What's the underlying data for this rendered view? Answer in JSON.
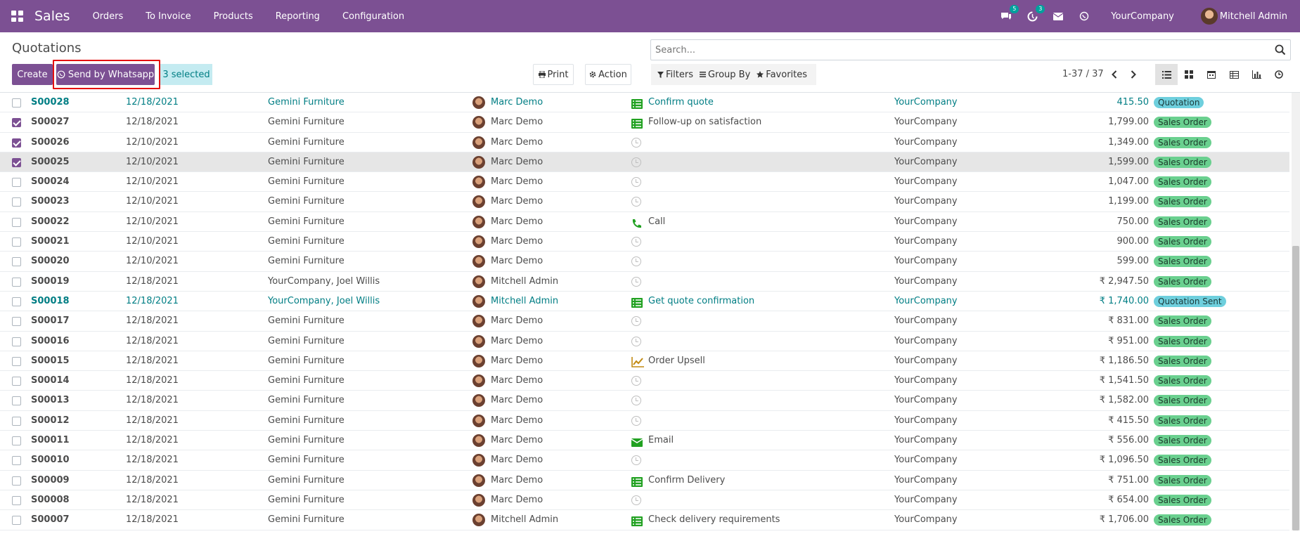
{
  "navbar": {
    "brand": "Sales",
    "menus": [
      "Orders",
      "To Invoice",
      "Products",
      "Reporting",
      "Configuration"
    ],
    "messages_badge": "5",
    "activities_badge": "3",
    "company": "YourCompany",
    "user": "Mitchell Admin",
    "color": "#7c5093"
  },
  "control": {
    "title": "Quotations",
    "search_placeholder": "Search...",
    "create_label": "Create",
    "whatsapp_label": "Send by Whatsapp",
    "selected_label": "3 selected",
    "print_label": "Print",
    "action_label": "Action",
    "filters_label": "Filters",
    "groupby_label": "Group By",
    "favorites_label": "Favorites",
    "pager": "1-37 / 37"
  },
  "rows": [
    {
      "num": "S00028",
      "date": "12/18/2021",
      "customer": "Gemini Furniture",
      "salesperson": "Marc Demo",
      "activity_icon": "todo-icon",
      "activity": "Confirm quote",
      "company": "YourCompany",
      "total": "415.50",
      "status": "Quotation",
      "status_color": "blue",
      "checked": false,
      "blue": true
    },
    {
      "num": "S00027",
      "date": "12/18/2021",
      "customer": "Gemini Furniture",
      "salesperson": "Marc Demo",
      "activity_icon": "todo-icon",
      "activity": "Follow-up on satisfaction",
      "company": "YourCompany",
      "total": "1,799.00",
      "status": "Sales Order",
      "status_color": "green",
      "checked": true
    },
    {
      "num": "S00026",
      "date": "12/10/2021",
      "customer": "Gemini Furniture",
      "salesperson": "Marc Demo",
      "activity_icon": "clock-icon",
      "activity": "",
      "company": "YourCompany",
      "total": "1,349.00",
      "status": "Sales Order",
      "status_color": "green",
      "checked": true
    },
    {
      "num": "S00025",
      "date": "12/10/2021",
      "customer": "Gemini Furniture",
      "salesperson": "Marc Demo",
      "activity_icon": "clock-icon",
      "activity": "",
      "company": "YourCompany",
      "total": "1,599.00",
      "status": "Sales Order",
      "status_color": "green",
      "checked": true,
      "highlight": true
    },
    {
      "num": "S00024",
      "date": "12/10/2021",
      "customer": "Gemini Furniture",
      "salesperson": "Marc Demo",
      "activity_icon": "clock-icon",
      "activity": "",
      "company": "YourCompany",
      "total": "1,047.00",
      "status": "Sales Order",
      "status_color": "green",
      "checked": false
    },
    {
      "num": "S00023",
      "date": "12/10/2021",
      "customer": "Gemini Furniture",
      "salesperson": "Marc Demo",
      "activity_icon": "clock-icon",
      "activity": "",
      "company": "YourCompany",
      "total": "1,199.00",
      "status": "Sales Order",
      "status_color": "green",
      "checked": false
    },
    {
      "num": "S00022",
      "date": "12/10/2021",
      "customer": "Gemini Furniture",
      "salesperson": "Marc Demo",
      "activity_icon": "phone-icon",
      "activity": "Call",
      "company": "YourCompany",
      "total": "750.00",
      "status": "Sales Order",
      "status_color": "green",
      "checked": false
    },
    {
      "num": "S00021",
      "date": "12/10/2021",
      "customer": "Gemini Furniture",
      "salesperson": "Marc Demo",
      "activity_icon": "clock-icon",
      "activity": "",
      "company": "YourCompany",
      "total": "900.00",
      "status": "Sales Order",
      "status_color": "green",
      "checked": false
    },
    {
      "num": "S00020",
      "date": "12/10/2021",
      "customer": "Gemini Furniture",
      "salesperson": "Marc Demo",
      "activity_icon": "clock-icon",
      "activity": "",
      "company": "YourCompany",
      "total": "599.00",
      "status": "Sales Order",
      "status_color": "green",
      "checked": false
    },
    {
      "num": "S00019",
      "date": "12/18/2021",
      "customer": "YourCompany, Joel Willis",
      "salesperson": "Mitchell Admin",
      "activity_icon": "clock-icon",
      "activity": "",
      "company": "YourCompany",
      "total": "₹ 2,947.50",
      "status": "Sales Order",
      "status_color": "green",
      "checked": false
    },
    {
      "num": "S00018",
      "date": "12/18/2021",
      "customer": "YourCompany, Joel Willis",
      "salesperson": "Mitchell Admin",
      "activity_icon": "todo-icon",
      "activity": "Get quote confirmation",
      "company": "YourCompany",
      "total": "₹ 1,740.00",
      "status": "Quotation Sent",
      "status_color": "blue",
      "checked": false,
      "blue": true
    },
    {
      "num": "S00017",
      "date": "12/18/2021",
      "customer": "Gemini Furniture",
      "salesperson": "Marc Demo",
      "activity_icon": "clock-icon",
      "activity": "",
      "company": "YourCompany",
      "total": "₹ 831.00",
      "status": "Sales Order",
      "status_color": "green",
      "checked": false
    },
    {
      "num": "S00016",
      "date": "12/18/2021",
      "customer": "Gemini Furniture",
      "salesperson": "Marc Demo",
      "activity_icon": "clock-icon",
      "activity": "",
      "company": "YourCompany",
      "total": "₹ 951.00",
      "status": "Sales Order",
      "status_color": "green",
      "checked": false
    },
    {
      "num": "S00015",
      "date": "12/18/2021",
      "customer": "Gemini Furniture",
      "salesperson": "Marc Demo",
      "activity_icon": "upsell-icon",
      "activity": "Order Upsell",
      "company": "YourCompany",
      "total": "₹ 1,186.50",
      "status": "Sales Order",
      "status_color": "green",
      "checked": false
    },
    {
      "num": "S00014",
      "date": "12/18/2021",
      "customer": "Gemini Furniture",
      "salesperson": "Marc Demo",
      "activity_icon": "clock-icon",
      "activity": "",
      "company": "YourCompany",
      "total": "₹ 1,541.50",
      "status": "Sales Order",
      "status_color": "green",
      "checked": false
    },
    {
      "num": "S00013",
      "date": "12/18/2021",
      "customer": "Gemini Furniture",
      "salesperson": "Marc Demo",
      "activity_icon": "clock-icon",
      "activity": "",
      "company": "YourCompany",
      "total": "₹ 1,582.00",
      "status": "Sales Order",
      "status_color": "green",
      "checked": false
    },
    {
      "num": "S00012",
      "date": "12/18/2021",
      "customer": "Gemini Furniture",
      "salesperson": "Marc Demo",
      "activity_icon": "clock-icon",
      "activity": "",
      "company": "YourCompany",
      "total": "₹ 415.50",
      "status": "Sales Order",
      "status_color": "green",
      "checked": false
    },
    {
      "num": "S00011",
      "date": "12/18/2021",
      "customer": "Gemini Furniture",
      "salesperson": "Marc Demo",
      "activity_icon": "email-icon",
      "activity": "Email",
      "company": "YourCompany",
      "total": "₹ 556.00",
      "status": "Sales Order",
      "status_color": "green",
      "checked": false
    },
    {
      "num": "S00010",
      "date": "12/18/2021",
      "customer": "Gemini Furniture",
      "salesperson": "Marc Demo",
      "activity_icon": "clock-icon",
      "activity": "",
      "company": "YourCompany",
      "total": "₹ 1,096.50",
      "status": "Sales Order",
      "status_color": "green",
      "checked": false
    },
    {
      "num": "S00009",
      "date": "12/18/2021",
      "customer": "Gemini Furniture",
      "salesperson": "Marc Demo",
      "activity_icon": "todo-icon",
      "activity": "Confirm Delivery",
      "company": "YourCompany",
      "total": "₹ 751.00",
      "status": "Sales Order",
      "status_color": "green",
      "checked": false
    },
    {
      "num": "S00008",
      "date": "12/18/2021",
      "customer": "Gemini Furniture",
      "salesperson": "Marc Demo",
      "activity_icon": "clock-icon",
      "activity": "",
      "company": "YourCompany",
      "total": "₹ 654.00",
      "status": "Sales Order",
      "status_color": "green",
      "checked": false
    },
    {
      "num": "S00007",
      "date": "12/18/2021",
      "customer": "Gemini Furniture",
      "salesperson": "Mitchell Admin",
      "activity_icon": "todo-icon",
      "activity": "Check delivery requirements",
      "company": "YourCompany",
      "total": "₹ 1,706.00",
      "status": "Sales Order",
      "status_color": "green",
      "checked": false
    }
  ]
}
